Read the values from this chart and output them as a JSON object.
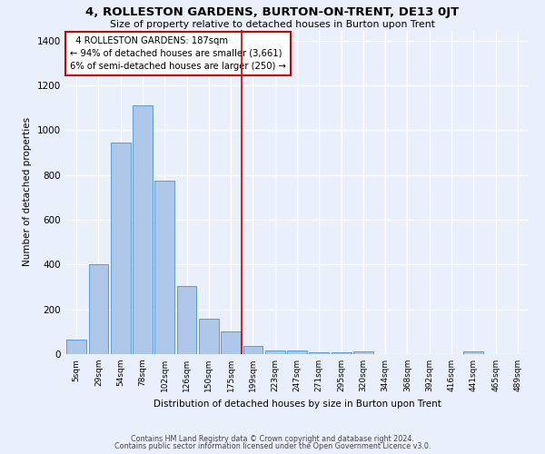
{
  "title": "4, ROLLESTON GARDENS, BURTON-ON-TRENT, DE13 0JT",
  "subtitle": "Size of property relative to detached houses in Burton upon Trent",
  "xlabel": "Distribution of detached houses by size in Burton upon Trent",
  "ylabel": "Number of detached properties",
  "footnote1": "Contains HM Land Registry data © Crown copyright and database right 2024.",
  "footnote2": "Contains public sector information licensed under the Open Government Licence v3.0.",
  "categories": [
    "5sqm",
    "29sqm",
    "54sqm",
    "78sqm",
    "102sqm",
    "126sqm",
    "150sqm",
    "175sqm",
    "199sqm",
    "223sqm",
    "247sqm",
    "271sqm",
    "295sqm",
    "320sqm",
    "344sqm",
    "368sqm",
    "392sqm",
    "416sqm",
    "441sqm",
    "465sqm",
    "489sqm"
  ],
  "values": [
    65,
    400,
    945,
    1110,
    775,
    305,
    160,
    100,
    35,
    18,
    18,
    10,
    10,
    12,
    0,
    0,
    0,
    0,
    12,
    0,
    0
  ],
  "bar_color": "#aec6e8",
  "bar_edge_color": "#5b9bd5",
  "bg_color": "#eaf0fb",
  "grid_color": "#ffffff",
  "annotation_text": "  4 ROLLESTON GARDENS: 187sqm  \n← 94% of detached houses are smaller (3,661)\n6% of semi-detached houses are larger (250) →",
  "annotation_box_color": "#ffffff",
  "annotation_box_edge": "#cc0000",
  "vline_x": 7.5,
  "vline_color": "#cc0000",
  "ylim": [
    0,
    1450
  ],
  "yticks": [
    0,
    200,
    400,
    600,
    800,
    1000,
    1200,
    1400
  ]
}
